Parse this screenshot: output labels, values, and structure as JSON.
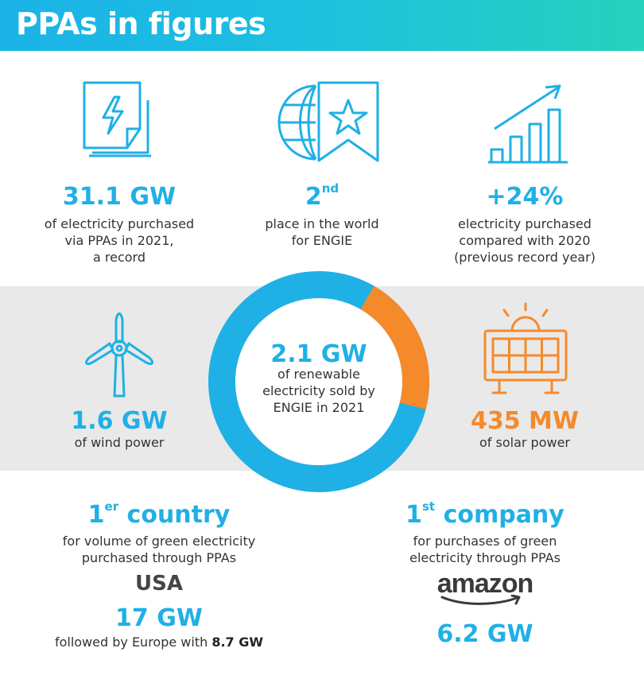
{
  "header": {
    "title": "PPAs in figures"
  },
  "colors": {
    "blue": "#1fb0e6",
    "orange": "#f58a2b",
    "gradient_start": "#1bb3e8",
    "gradient_end": "#27d2bd"
  },
  "icons": {
    "document": "lightning-document-icon",
    "globe": "globe-star-flag-icon",
    "growth": "growth-bar-chart-icon",
    "wind": "wind-turbine-icon",
    "solar": "solar-panel-icon"
  },
  "stat1": {
    "value": "31.1 GW",
    "line1": "of electricity purchased",
    "line2": "via PPAs in 2021,",
    "line3": "a record"
  },
  "stat2": {
    "value": "2",
    "suffix": "nd",
    "line1": "place in the world",
    "line2": "for ENGIE"
  },
  "stat3": {
    "value": "+24%",
    "line1": "electricity purchased",
    "line2": "compared with 2020",
    "line3": "(previous record year)"
  },
  "donut": {
    "value": "2.1 GW",
    "line1": "of renewable",
    "line2": "electricity sold by",
    "line3": "ENGIE in 2021",
    "wind_share": 0.762,
    "solar_share": 0.207
  },
  "wind": {
    "value": "1.6 GW",
    "label": "of wind power"
  },
  "solar": {
    "value": "435 MW",
    "label": "of solar power"
  },
  "country": {
    "rank": "1",
    "suffix": "er",
    "title": "country",
    "line1": "for volume of green electricity",
    "line2": "purchased through PPAs",
    "name": "USA",
    "value": "17 GW",
    "follow_text": "followed by Europe with",
    "follow_value": "8.7 GW"
  },
  "company": {
    "rank": "1",
    "suffix": "st",
    "title": "company",
    "line1": "for purchases of green",
    "line2": "electricity through PPAs",
    "logo_text": "amazon",
    "value": "6.2 GW"
  }
}
